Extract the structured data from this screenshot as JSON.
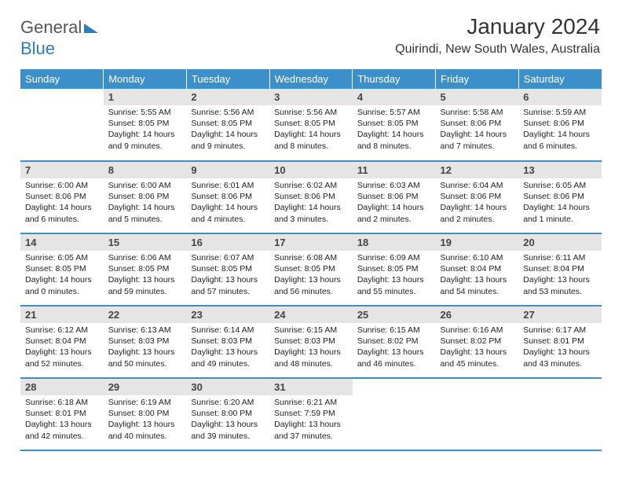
{
  "logo": {
    "text1": "General",
    "text2": "Blue"
  },
  "title": "January 2024",
  "location": "Quirindi, New South Wales, Australia",
  "colors": {
    "header_bg": "#3d8fc9",
    "header_text": "#ffffff",
    "daynum_bg": "#e5e5e5",
    "row_border": "#3d8fc9",
    "logo_blue": "#2d7cc0"
  },
  "weekdays": [
    "Sunday",
    "Monday",
    "Tuesday",
    "Wednesday",
    "Thursday",
    "Friday",
    "Saturday"
  ],
  "start_offset": 1,
  "days": [
    {
      "n": 1,
      "sunrise": "5:55 AM",
      "sunset": "8:05 PM",
      "daylight": "14 hours and 9 minutes."
    },
    {
      "n": 2,
      "sunrise": "5:56 AM",
      "sunset": "8:05 PM",
      "daylight": "14 hours and 9 minutes."
    },
    {
      "n": 3,
      "sunrise": "5:56 AM",
      "sunset": "8:05 PM",
      "daylight": "14 hours and 8 minutes."
    },
    {
      "n": 4,
      "sunrise": "5:57 AM",
      "sunset": "8:05 PM",
      "daylight": "14 hours and 8 minutes."
    },
    {
      "n": 5,
      "sunrise": "5:58 AM",
      "sunset": "8:06 PM",
      "daylight": "14 hours and 7 minutes."
    },
    {
      "n": 6,
      "sunrise": "5:59 AM",
      "sunset": "8:06 PM",
      "daylight": "14 hours and 6 minutes."
    },
    {
      "n": 7,
      "sunrise": "6:00 AM",
      "sunset": "8:06 PM",
      "daylight": "14 hours and 6 minutes."
    },
    {
      "n": 8,
      "sunrise": "6:00 AM",
      "sunset": "8:06 PM",
      "daylight": "14 hours and 5 minutes."
    },
    {
      "n": 9,
      "sunrise": "6:01 AM",
      "sunset": "8:06 PM",
      "daylight": "14 hours and 4 minutes."
    },
    {
      "n": 10,
      "sunrise": "6:02 AM",
      "sunset": "8:06 PM",
      "daylight": "14 hours and 3 minutes."
    },
    {
      "n": 11,
      "sunrise": "6:03 AM",
      "sunset": "8:06 PM",
      "daylight": "14 hours and 2 minutes."
    },
    {
      "n": 12,
      "sunrise": "6:04 AM",
      "sunset": "8:06 PM",
      "daylight": "14 hours and 2 minutes."
    },
    {
      "n": 13,
      "sunrise": "6:05 AM",
      "sunset": "8:06 PM",
      "daylight": "14 hours and 1 minute."
    },
    {
      "n": 14,
      "sunrise": "6:05 AM",
      "sunset": "8:05 PM",
      "daylight": "14 hours and 0 minutes."
    },
    {
      "n": 15,
      "sunrise": "6:06 AM",
      "sunset": "8:05 PM",
      "daylight": "13 hours and 59 minutes."
    },
    {
      "n": 16,
      "sunrise": "6:07 AM",
      "sunset": "8:05 PM",
      "daylight": "13 hours and 57 minutes."
    },
    {
      "n": 17,
      "sunrise": "6:08 AM",
      "sunset": "8:05 PM",
      "daylight": "13 hours and 56 minutes."
    },
    {
      "n": 18,
      "sunrise": "6:09 AM",
      "sunset": "8:05 PM",
      "daylight": "13 hours and 55 minutes."
    },
    {
      "n": 19,
      "sunrise": "6:10 AM",
      "sunset": "8:04 PM",
      "daylight": "13 hours and 54 minutes."
    },
    {
      "n": 20,
      "sunrise": "6:11 AM",
      "sunset": "8:04 PM",
      "daylight": "13 hours and 53 minutes."
    },
    {
      "n": 21,
      "sunrise": "6:12 AM",
      "sunset": "8:04 PM",
      "daylight": "13 hours and 52 minutes."
    },
    {
      "n": 22,
      "sunrise": "6:13 AM",
      "sunset": "8:03 PM",
      "daylight": "13 hours and 50 minutes."
    },
    {
      "n": 23,
      "sunrise": "6:14 AM",
      "sunset": "8:03 PM",
      "daylight": "13 hours and 49 minutes."
    },
    {
      "n": 24,
      "sunrise": "6:15 AM",
      "sunset": "8:03 PM",
      "daylight": "13 hours and 48 minutes."
    },
    {
      "n": 25,
      "sunrise": "6:15 AM",
      "sunset": "8:02 PM",
      "daylight": "13 hours and 46 minutes."
    },
    {
      "n": 26,
      "sunrise": "6:16 AM",
      "sunset": "8:02 PM",
      "daylight": "13 hours and 45 minutes."
    },
    {
      "n": 27,
      "sunrise": "6:17 AM",
      "sunset": "8:01 PM",
      "daylight": "13 hours and 43 minutes."
    },
    {
      "n": 28,
      "sunrise": "6:18 AM",
      "sunset": "8:01 PM",
      "daylight": "13 hours and 42 minutes."
    },
    {
      "n": 29,
      "sunrise": "6:19 AM",
      "sunset": "8:00 PM",
      "daylight": "13 hours and 40 minutes."
    },
    {
      "n": 30,
      "sunrise": "6:20 AM",
      "sunset": "8:00 PM",
      "daylight": "13 hours and 39 minutes."
    },
    {
      "n": 31,
      "sunrise": "6:21 AM",
      "sunset": "7:59 PM",
      "daylight": "13 hours and 37 minutes."
    }
  ],
  "labels": {
    "sunrise": "Sunrise:",
    "sunset": "Sunset:",
    "daylight": "Daylight:"
  }
}
